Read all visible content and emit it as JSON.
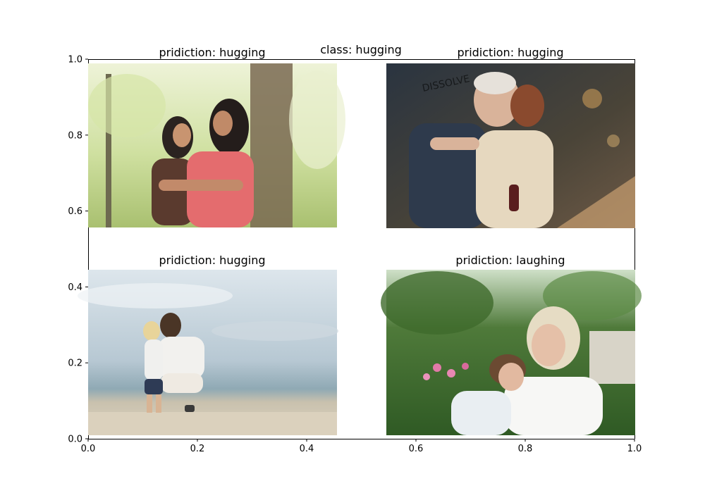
{
  "figure": {
    "suptitle": "class: hugging"
  },
  "chart_data": {
    "type": "image-grid",
    "xlim": [
      0.0,
      1.0
    ],
    "ylim": [
      0.0,
      1.0
    ],
    "grid": false,
    "x_ticks": [
      "0.0",
      "0.2",
      "0.4",
      "0.6",
      "0.8",
      "1.0"
    ],
    "y_ticks": [
      "0.0",
      "0.2",
      "0.4",
      "0.6",
      "0.8",
      "1.0"
    ],
    "panels": [
      {
        "title": "pridiction: hugging",
        "scene": "mother-daughter-park"
      },
      {
        "title": "pridiction: hugging",
        "scene": "elderly-couple-indoor",
        "watermark": "DISSOLVE"
      },
      {
        "title": "pridiction: hugging",
        "scene": "father-child-beach"
      },
      {
        "title": "pridiction: laughing",
        "scene": "mother-daughter-garden"
      }
    ]
  }
}
